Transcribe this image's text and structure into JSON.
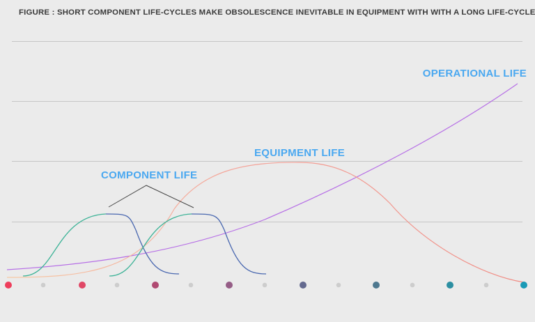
{
  "title": "FIGURE : SHORT COMPONENT LIFE-CYCLES MAKE OBSOLESCENCE INEVITABLE IN EQUIPMENT WITH WITH A LONG LIFE-CYCLE",
  "labels": {
    "operational": "OPERATIONAL LIFE",
    "equipment": "EQUIPMENT LIFE",
    "component": "COMPONENT LIFE"
  },
  "colors": {
    "background": "#ebebeb",
    "label": "#4aa8f0",
    "operational_curve": "#b66ee6",
    "equipment_curve": "#f4a49a",
    "equipment_curve_left": "#f7c9a5",
    "component_rise": "#3db397",
    "component_fall": "#4a68b0",
    "gridline": "#c6c6c6",
    "minor_dot": "#cdcdcd",
    "callout_line": "#444444"
  },
  "timeline_markers": [
    "#ee3e5c",
    "#e04766",
    "#b04a72",
    "#955d86",
    "#646a8f",
    "#4e788f",
    "#2c8fa2",
    "#1a9ab6"
  ]
}
